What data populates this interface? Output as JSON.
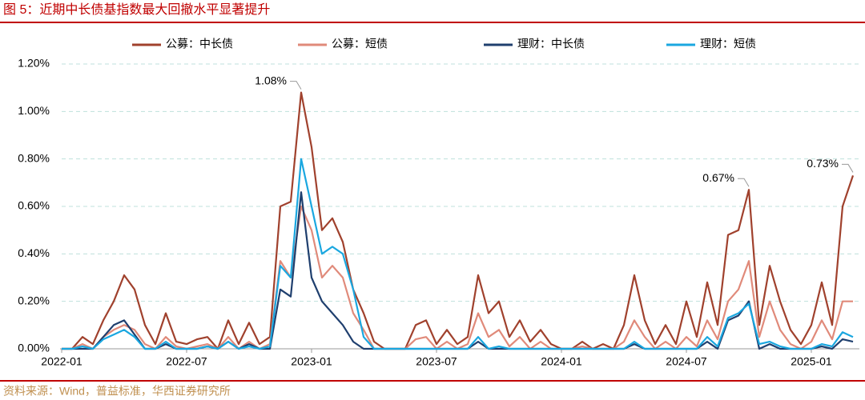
{
  "chart_data": {
    "type": "line",
    "title": "图 5：近期中长债基指数最大回撤水平显著提升",
    "source": "资料来源：Wind，普益标准，华西证券研究所",
    "categories": [
      "2022-01",
      null,
      null,
      null,
      null,
      null,
      null,
      null,
      null,
      null,
      null,
      null,
      "2022-07",
      null,
      null,
      null,
      null,
      null,
      null,
      null,
      null,
      null,
      null,
      null,
      "2023-01",
      null,
      null,
      null,
      null,
      null,
      null,
      null,
      null,
      null,
      null,
      null,
      "2023-07",
      null,
      null,
      null,
      null,
      null,
      null,
      null,
      null,
      null,
      null,
      null,
      "2024-01",
      null,
      null,
      null,
      null,
      null,
      null,
      null,
      null,
      null,
      null,
      null,
      "2024-07",
      null,
      null,
      null,
      null,
      null,
      null,
      null,
      null,
      null,
      null,
      null,
      "2025-01",
      null,
      null,
      null,
      null
    ],
    "ylim": [
      0,
      1.2
    ],
    "yticks": [
      {
        "value": 0,
        "label": "0.00%"
      },
      {
        "value": 0.2,
        "label": "0.20%"
      },
      {
        "value": 0.4,
        "label": "0.40%"
      },
      {
        "value": 0.6,
        "label": "0.60%"
      },
      {
        "value": 0.8,
        "label": "0.80%"
      },
      {
        "value": 1.0,
        "label": "1.00%"
      },
      {
        "value": 1.2,
        "label": "1.20%"
      }
    ],
    "grid": true,
    "legend": "top",
    "series": [
      {
        "name": "公募：中长债",
        "color": "#a0412d",
        "values": [
          0,
          0,
          0.05,
          0.02,
          0.12,
          0.2,
          0.31,
          0.25,
          0.1,
          0.02,
          0.15,
          0.03,
          0.02,
          0.04,
          0.05,
          0,
          0.12,
          0.02,
          0.11,
          0.02,
          0.05,
          0.6,
          0.62,
          1.08,
          0.85,
          0.5,
          0.55,
          0.45,
          0.25,
          0.15,
          0.03,
          0,
          0,
          0,
          0.1,
          0.12,
          0.02,
          0.08,
          0.02,
          0.05,
          0.31,
          0.15,
          0.2,
          0.05,
          0.12,
          0.03,
          0.08,
          0.02,
          0,
          0,
          0.03,
          0,
          0.02,
          0,
          0.1,
          0.31,
          0.12,
          0.02,
          0.1,
          0.02,
          0.2,
          0.05,
          0.28,
          0.1,
          0.48,
          0.5,
          0.67,
          0.1,
          0.35,
          0.2,
          0.08,
          0.02,
          0.1,
          0.28,
          0.1,
          0.6,
          0.73
        ],
        "value_labels": [
          null,
          null,
          null,
          null,
          null,
          null,
          null,
          null,
          null,
          null,
          null,
          null,
          null,
          null,
          null,
          null,
          null,
          null,
          null,
          null,
          null,
          null,
          null,
          "1.08%",
          null,
          null,
          null,
          null,
          null,
          null,
          null,
          null,
          null,
          null,
          null,
          null,
          null,
          null,
          null,
          null,
          null,
          null,
          null,
          null,
          null,
          null,
          null,
          null,
          null,
          null,
          null,
          null,
          null,
          null,
          null,
          null,
          null,
          null,
          null,
          null,
          null,
          null,
          null,
          null,
          null,
          null,
          "0.67%",
          null,
          null,
          null,
          null,
          null,
          null,
          null,
          null,
          null,
          "0.73%"
        ]
      },
      {
        "name": "公募：短债",
        "color": "#e08a7a",
        "values": [
          0,
          0,
          0.02,
          0,
          0.05,
          0.08,
          0.1,
          0.08,
          0.02,
          0,
          0.05,
          0.01,
          0,
          0.01,
          0.02,
          0,
          0.05,
          0,
          0.03,
          0,
          0.02,
          0.37,
          0.3,
          0.6,
          0.5,
          0.3,
          0.35,
          0.3,
          0.15,
          0.08,
          0,
          0,
          0,
          0,
          0.04,
          0.05,
          0,
          0.03,
          0,
          0.02,
          0.15,
          0.05,
          0.08,
          0.01,
          0.05,
          0,
          0.03,
          0,
          0,
          0,
          0.01,
          0,
          0,
          0,
          0.03,
          0.12,
          0.05,
          0,
          0.03,
          0,
          0.05,
          0.01,
          0.12,
          0.04,
          0.2,
          0.25,
          0.37,
          0.05,
          0.2,
          0.08,
          0.02,
          0,
          0.03,
          0.12,
          0.04,
          0.2,
          0.2
        ]
      },
      {
        "name": "理财：中长债",
        "color": "#1f3f6e",
        "values": [
          0,
          0,
          0,
          0,
          0.05,
          0.1,
          0.12,
          0.06,
          0,
          0,
          0.02,
          0,
          0,
          0,
          0.01,
          0,
          0.03,
          0,
          0.02,
          0,
          0,
          0.25,
          0.22,
          0.66,
          0.3,
          0.2,
          0.15,
          0.1,
          0.03,
          0,
          0,
          0,
          0,
          0,
          0,
          0,
          0,
          0,
          0,
          0,
          0.03,
          0,
          0,
          0,
          0,
          0,
          0,
          0,
          0,
          0,
          0,
          0,
          0,
          0,
          0,
          0.02,
          0,
          0,
          0,
          0,
          0,
          0,
          0.03,
          0,
          0.12,
          0.14,
          0.2,
          0,
          0.02,
          0,
          0,
          0,
          0,
          0.01,
          0,
          0.04,
          0.03
        ]
      },
      {
        "name": "理财：短债",
        "color": "#1aa7e0",
        "values": [
          0,
          0,
          0.01,
          0,
          0.04,
          0.06,
          0.08,
          0.05,
          0,
          0,
          0.03,
          0,
          0,
          0,
          0.01,
          0,
          0.03,
          0,
          0.01,
          0,
          0.01,
          0.35,
          0.3,
          0.8,
          0.6,
          0.4,
          0.43,
          0.4,
          0.25,
          0.05,
          0,
          0,
          0,
          0,
          0,
          0,
          0,
          0,
          0,
          0,
          0.05,
          0,
          0.01,
          0,
          0,
          0,
          0,
          0,
          0,
          0,
          0,
          0,
          0,
          0,
          0,
          0.03,
          0,
          0,
          0,
          0,
          0,
          0,
          0.05,
          0.01,
          0.13,
          0.15,
          0.19,
          0.02,
          0.03,
          0.01,
          0,
          0,
          0,
          0.02,
          0.01,
          0.07,
          0.05
        ]
      }
    ]
  }
}
